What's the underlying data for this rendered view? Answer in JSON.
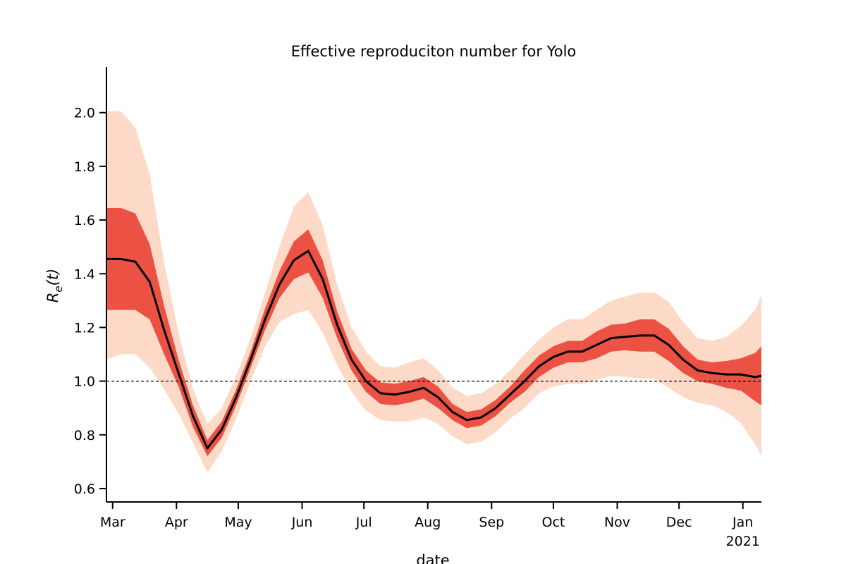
{
  "chart_data": {
    "type": "line",
    "title": "Effective reproduciton number for Yolo",
    "xlabel": "date",
    "ylabel_parts": [
      "R",
      "e",
      "(t)"
    ],
    "x": [
      "2020-02-27",
      "2020-03-05",
      "2020-03-12",
      "2020-03-19",
      "2020-03-26",
      "2020-04-02",
      "2020-04-09",
      "2020-04-16",
      "2020-04-23",
      "2020-04-30",
      "2020-05-07",
      "2020-05-14",
      "2020-05-21",
      "2020-05-28",
      "2020-06-04",
      "2020-06-11",
      "2020-06-18",
      "2020-06-25",
      "2020-07-02",
      "2020-07-09",
      "2020-07-16",
      "2020-07-23",
      "2020-07-30",
      "2020-08-06",
      "2020-08-13",
      "2020-08-20",
      "2020-08-27",
      "2020-09-03",
      "2020-09-10",
      "2020-09-17",
      "2020-09-24",
      "2020-10-01",
      "2020-10-08",
      "2020-10-15",
      "2020-10-22",
      "2020-10-29",
      "2020-11-05",
      "2020-11-12",
      "2020-11-19",
      "2020-11-26",
      "2020-12-03",
      "2020-12-10",
      "2020-12-17",
      "2020-12-24",
      "2020-12-31",
      "2021-01-07",
      "2021-01-10"
    ],
    "series": [
      {
        "color": "#000000",
        "values": [
          1.455,
          1.455,
          1.445,
          1.37,
          1.19,
          1.03,
          0.87,
          0.75,
          0.82,
          0.94,
          1.08,
          1.23,
          1.36,
          1.45,
          1.485,
          1.38,
          1.21,
          1.08,
          1.0,
          0.955,
          0.95,
          0.96,
          0.975,
          0.94,
          0.885,
          0.855,
          0.865,
          0.9,
          0.95,
          1.0,
          1.055,
          1.09,
          1.11,
          1.11,
          1.135,
          1.16,
          1.165,
          1.17,
          1.17,
          1.135,
          1.08,
          1.04,
          1.03,
          1.025,
          1.025,
          1.015,
          1.02
        ]
      }
    ],
    "bands": [
      {
        "color": "#fdd5c1",
        "upper": [
          2.005,
          2.005,
          1.945,
          1.77,
          1.44,
          1.18,
          0.97,
          0.84,
          0.9,
          1.02,
          1.16,
          1.33,
          1.5,
          1.65,
          1.705,
          1.58,
          1.36,
          1.2,
          1.11,
          1.055,
          1.05,
          1.07,
          1.085,
          1.04,
          0.975,
          0.945,
          0.955,
          0.99,
          1.04,
          1.1,
          1.155,
          1.2,
          1.23,
          1.23,
          1.265,
          1.3,
          1.315,
          1.33,
          1.33,
          1.295,
          1.22,
          1.16,
          1.15,
          1.165,
          1.205,
          1.265,
          1.32
        ],
        "lower": [
          1.08,
          1.1,
          1.1,
          1.05,
          0.97,
          0.88,
          0.77,
          0.66,
          0.74,
          0.86,
          1.0,
          1.13,
          1.22,
          1.25,
          1.265,
          1.18,
          1.06,
          0.96,
          0.89,
          0.855,
          0.85,
          0.85,
          0.865,
          0.84,
          0.795,
          0.765,
          0.775,
          0.81,
          0.86,
          0.9,
          0.955,
          0.98,
          0.99,
          0.99,
          1.005,
          1.02,
          1.015,
          1.01,
          1.01,
          0.975,
          0.94,
          0.92,
          0.91,
          0.885,
          0.845,
          0.765,
          0.72
        ]
      },
      {
        "color": "#e8392b",
        "upper": [
          1.645,
          1.645,
          1.625,
          1.51,
          1.28,
          1.08,
          0.91,
          0.78,
          0.85,
          0.97,
          1.11,
          1.27,
          1.41,
          1.52,
          1.565,
          1.45,
          1.26,
          1.12,
          1.04,
          0.995,
          0.99,
          1.0,
          1.015,
          0.98,
          0.915,
          0.885,
          0.895,
          0.93,
          0.98,
          1.04,
          1.095,
          1.13,
          1.15,
          1.15,
          1.185,
          1.21,
          1.215,
          1.23,
          1.23,
          1.195,
          1.13,
          1.08,
          1.07,
          1.075,
          1.085,
          1.105,
          1.13
        ],
        "lower": [
          1.265,
          1.265,
          1.265,
          1.23,
          1.1,
          0.98,
          0.83,
          0.72,
          0.79,
          0.91,
          1.05,
          1.19,
          1.31,
          1.38,
          1.405,
          1.31,
          1.16,
          1.04,
          0.96,
          0.915,
          0.91,
          0.92,
          0.935,
          0.9,
          0.855,
          0.825,
          0.835,
          0.87,
          0.92,
          0.96,
          1.015,
          1.05,
          1.07,
          1.07,
          1.085,
          1.11,
          1.115,
          1.11,
          1.11,
          1.075,
          1.03,
          1.0,
          0.99,
          0.975,
          0.965,
          0.925,
          0.91
        ]
      }
    ],
    "reference_line": 1.0,
    "xlim": [
      "2020-02-27",
      "2021-01-10"
    ],
    "xticks": [
      {
        "value": "2020-03-01",
        "label": "Mar"
      },
      {
        "value": "2020-04-01",
        "label": "Apr"
      },
      {
        "value": "2020-05-01",
        "label": "May"
      },
      {
        "value": "2020-06-01",
        "label": "Jun"
      },
      {
        "value": "2020-07-01",
        "label": "Jul"
      },
      {
        "value": "2020-08-01",
        "label": "Aug"
      },
      {
        "value": "2020-09-01",
        "label": "Sep"
      },
      {
        "value": "2020-10-01",
        "label": "Oct"
      },
      {
        "value": "2020-11-01",
        "label": "Nov"
      },
      {
        "value": "2020-12-01",
        "label": "Dec"
      },
      {
        "value": "2021-01-01",
        "label": "Jan",
        "sublabel": "2021"
      }
    ],
    "ylim": [
      0.55,
      2.17
    ],
    "yticks": [
      {
        "value": 0.6,
        "label": "0.6"
      },
      {
        "value": 0.8,
        "label": "0.8"
      },
      {
        "value": 1.0,
        "label": "1.0"
      },
      {
        "value": 1.2,
        "label": "1.2"
      },
      {
        "value": 1.4,
        "label": "1.4"
      },
      {
        "value": 1.6,
        "label": "1.6"
      },
      {
        "value": 1.8,
        "label": "1.8"
      },
      {
        "value": 2.0,
        "label": "2.0"
      }
    ]
  }
}
